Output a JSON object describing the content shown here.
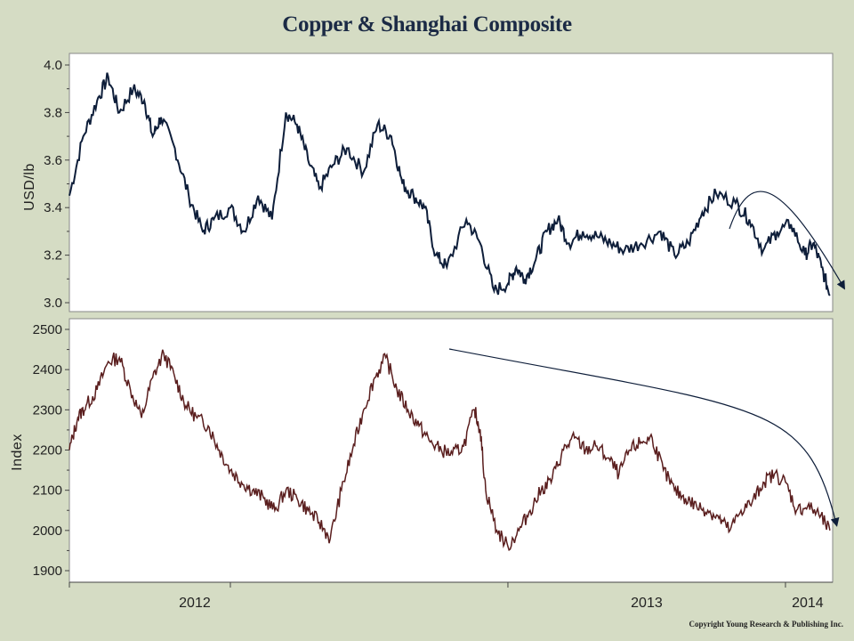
{
  "title": "Copper & Shanghai Composite",
  "copyright": "Copyright Young Research & Publishing Inc.",
  "colors": {
    "background": "#d5dcc4",
    "plot_background": "#ffffff",
    "copper_line": "#0e1e3a",
    "shanghai_line": "#5a1e1e",
    "trend_arrow": "#0e1e3a"
  },
  "chart_data": [
    {
      "type": "line",
      "panel": "top",
      "ylabel": "USD/lb",
      "ylim": [
        3.0,
        4.0
      ],
      "yticks": [
        "3.0",
        "3.2",
        "3.4",
        "3.6",
        "3.8",
        "4.0"
      ],
      "xlim": [
        2011.42,
        2014.17
      ],
      "grid": false,
      "series": [
        {
          "x": [
            2011.42,
            2011.47,
            2011.52,
            2011.56,
            2011.6,
            2011.65,
            2011.69,
            2011.72,
            2011.75,
            2011.8,
            2011.85,
            2011.9,
            2011.94,
            2012.0,
            2012.05,
            2012.1,
            2012.15,
            2012.2,
            2012.24,
            2012.28,
            2012.32,
            2012.37,
            2012.42,
            2012.48,
            2012.53,
            2012.58,
            2012.62,
            2012.66,
            2012.7,
            2012.74,
            2012.78,
            2012.85,
            2012.9,
            2012.95,
            2013.0,
            2013.03,
            2013.06,
            2013.1,
            2013.14,
            2013.18,
            2013.22,
            2013.27,
            2013.32,
            2013.37,
            2013.42,
            2013.48,
            2013.55,
            2013.6,
            2013.65,
            2013.7,
            2013.75,
            2013.82,
            2013.87,
            2013.92,
            2013.97,
            2014.02,
            2014.07,
            2014.1,
            2014.13,
            2014.16
          ],
          "y": [
            3.45,
            3.7,
            3.85,
            3.95,
            3.8,
            3.9,
            3.85,
            3.7,
            3.78,
            3.65,
            3.45,
            3.3,
            3.35,
            3.4,
            3.3,
            3.45,
            3.35,
            3.8,
            3.75,
            3.6,
            3.48,
            3.58,
            3.65,
            3.55,
            3.75,
            3.7,
            3.5,
            3.45,
            3.4,
            3.2,
            3.15,
            3.35,
            3.25,
            3.05,
            3.08,
            3.15,
            3.1,
            3.18,
            3.3,
            3.35,
            3.25,
            3.3,
            3.28,
            3.25,
            3.22,
            3.25,
            3.3,
            3.2,
            3.25,
            3.38,
            3.46,
            3.42,
            3.35,
            3.22,
            3.3,
            3.33,
            3.2,
            3.25,
            3.15,
            3.03
          ]
        }
      ]
    },
    {
      "type": "line",
      "panel": "bottom",
      "ylabel": "Index",
      "ylim": [
        1900,
        2500
      ],
      "yticks": [
        "1900",
        "2000",
        "2100",
        "2200",
        "2300",
        "2400",
        "2500"
      ],
      "xlim": [
        2011.42,
        2014.17
      ],
      "x_tick_labels": [
        "2012",
        "2013",
        "2014"
      ],
      "grid": false,
      "series": [
        {
          "x": [
            2011.42,
            2011.45,
            2011.48,
            2011.52,
            2011.56,
            2011.6,
            2011.64,
            2011.68,
            2011.72,
            2011.76,
            2011.8,
            2011.84,
            2011.88,
            2011.92,
            2011.96,
            2012.0,
            2012.04,
            2012.08,
            2012.12,
            2012.16,
            2012.2,
            2012.24,
            2012.28,
            2012.32,
            2012.36,
            2012.4,
            2012.44,
            2012.48,
            2012.52,
            2012.56,
            2012.6,
            2012.64,
            2012.68,
            2012.72,
            2012.76,
            2012.8,
            2012.84,
            2012.88,
            2012.9,
            2012.92,
            2012.96,
            2013.0,
            2013.04,
            2013.08,
            2013.12,
            2013.16,
            2013.2,
            2013.24,
            2013.28,
            2013.32,
            2013.36,
            2013.4,
            2013.44,
            2013.48,
            2013.52,
            2013.56,
            2013.6,
            2013.64,
            2013.68,
            2013.72,
            2013.76,
            2013.8,
            2013.84,
            2013.88,
            2013.92,
            2013.96,
            2014.0,
            2014.04,
            2014.08,
            2014.12,
            2014.16
          ],
          "y": [
            2200,
            2280,
            2310,
            2350,
            2420,
            2430,
            2350,
            2280,
            2380,
            2440,
            2380,
            2310,
            2280,
            2260,
            2200,
            2150,
            2120,
            2100,
            2080,
            2050,
            2100,
            2080,
            2050,
            2020,
            1980,
            2100,
            2200,
            2300,
            2380,
            2430,
            2350,
            2300,
            2260,
            2220,
            2200,
            2190,
            2210,
            2300,
            2250,
            2100,
            2000,
            1960,
            2000,
            2050,
            2100,
            2130,
            2200,
            2230,
            2200,
            2210,
            2180,
            2140,
            2200,
            2220,
            2230,
            2150,
            2100,
            2080,
            2060,
            2050,
            2030,
            2000,
            2050,
            2070,
            2120,
            2140,
            2120,
            2050,
            2060,
            2040,
            2000
          ]
        }
      ]
    }
  ]
}
